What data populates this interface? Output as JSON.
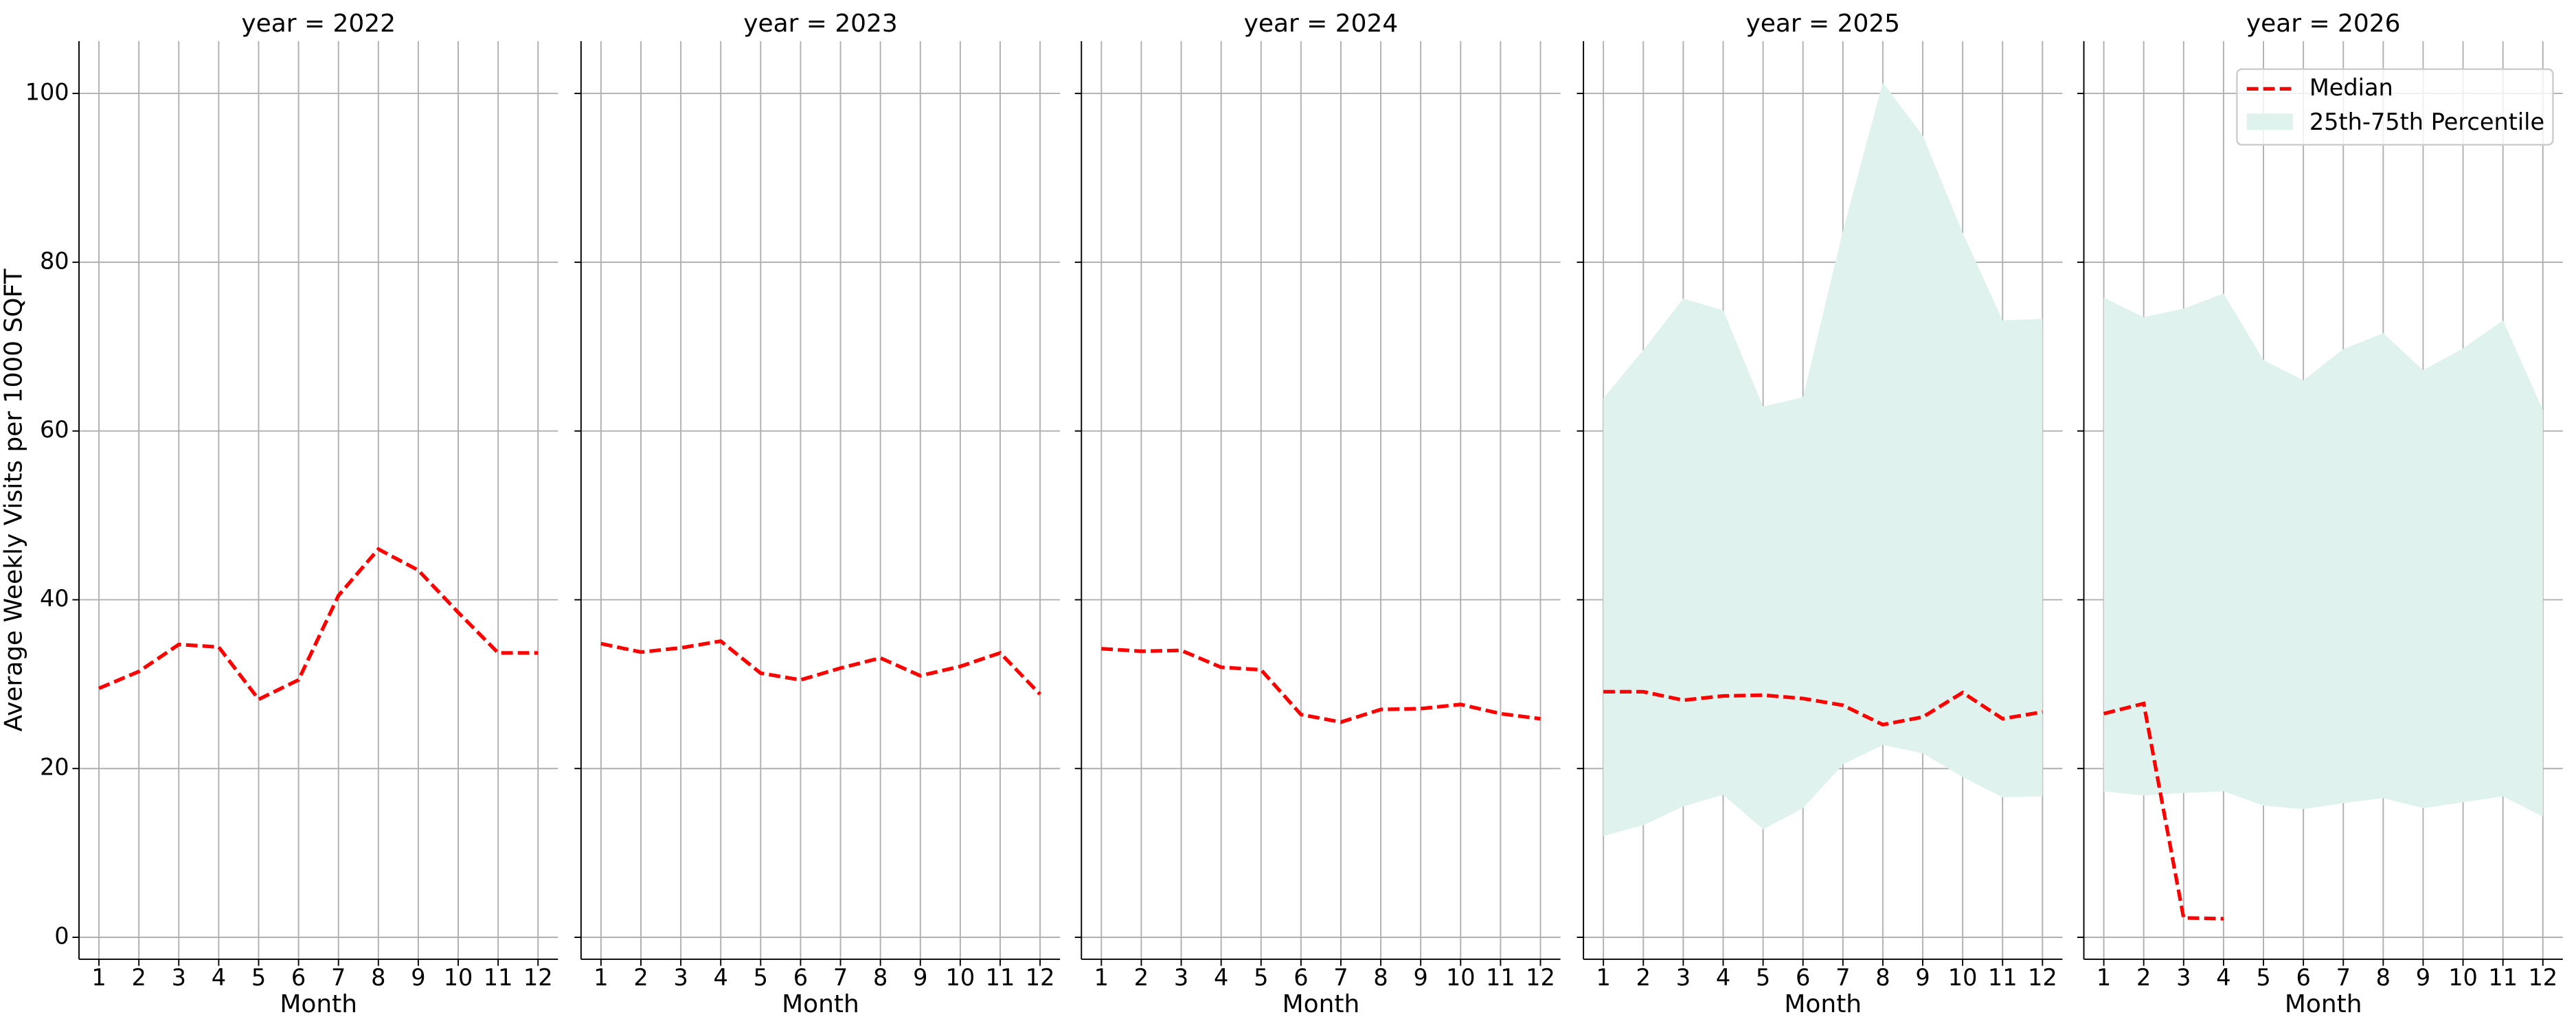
{
  "chart_data": [
    {
      "type": "line",
      "title": "year = 2022",
      "xlabel": "Month",
      "ylabel": "Average Weekly Visits per 1000 SQFT",
      "x": [
        1,
        2,
        3,
        4,
        5,
        6,
        7,
        8,
        9,
        10,
        11,
        12
      ],
      "xlim": [
        0.5,
        12.5
      ],
      "ylim": [
        -2.6,
        106.2
      ],
      "yticks": [
        0,
        20,
        40,
        60,
        80,
        100
      ],
      "grid": true,
      "series": [
        {
          "color": "#ff0000",
          "values": [
            29.5,
            31.5,
            34.7,
            34.4,
            28.2,
            30.5,
            40.5,
            46.0,
            43.5,
            38.5,
            33.7,
            33.7
          ]
        }
      ]
    },
    {
      "type": "line",
      "title": "year = 2023",
      "xlabel": "Month",
      "x": [
        1,
        2,
        3,
        4,
        5,
        6,
        7,
        8,
        9,
        10,
        11,
        12
      ],
      "xlim": [
        0.5,
        12.5
      ],
      "ylim": [
        -2.6,
        106.2
      ],
      "grid": true,
      "series": [
        {
          "color": "#ff0000",
          "values": [
            34.8,
            33.8,
            34.3,
            35.1,
            31.3,
            30.5,
            31.9,
            33.1,
            31.0,
            32.1,
            33.7,
            28.8
          ]
        }
      ]
    },
    {
      "type": "line",
      "title": "year = 2024",
      "xlabel": "Month",
      "x": [
        1,
        2,
        3,
        4,
        5,
        6,
        7,
        8,
        9,
        10,
        11,
        12
      ],
      "xlim": [
        0.5,
        12.5
      ],
      "ylim": [
        -2.6,
        106.2
      ],
      "grid": true,
      "series": [
        {
          "color": "#ff0000",
          "values": [
            34.2,
            33.9,
            34.0,
            32.0,
            31.7,
            26.4,
            25.5,
            27.0,
            27.1,
            27.6,
            26.5,
            25.9
          ]
        }
      ]
    },
    {
      "type": "line",
      "title": "year = 2025",
      "xlabel": "Month",
      "x": [
        1,
        2,
        3,
        4,
        5,
        6,
        7,
        8,
        9,
        10,
        11,
        12
      ],
      "xlim": [
        0.5,
        12.5
      ],
      "ylim": [
        -2.6,
        106.2
      ],
      "grid": true,
      "series": [
        {
          "color": "#ff0000",
          "values": [
            29.1,
            29.1,
            28.1,
            28.6,
            28.7,
            28.3,
            27.5,
            25.2,
            26.1,
            29.0,
            25.9,
            26.7
          ]
        }
      ],
      "band": {
        "color": "#dff2ed",
        "upper": [
          63.9,
          69.6,
          75.7,
          74.3,
          62.9,
          64.0,
          83.7,
          101.3,
          95.0,
          83.5,
          73.1,
          73.3
        ],
        "lower": [
          12.0,
          13.3,
          15.5,
          16.9,
          12.8,
          15.3,
          20.5,
          22.8,
          21.8,
          19.0,
          16.6,
          16.7
        ]
      }
    },
    {
      "type": "line",
      "title": "year = 2026",
      "xlabel": "Month",
      "legend": "upper right",
      "x": [
        1,
        2,
        3,
        4,
        5,
        6,
        7,
        8,
        9,
        10,
        11,
        12
      ],
      "xlim": [
        0.5,
        12.5
      ],
      "ylim": [
        -2.6,
        106.2
      ],
      "grid": true,
      "series": [
        {
          "name": "Median",
          "color": "#ff0000",
          "values": [
            26.5,
            27.7,
            2.3,
            2.2,
            null,
            null,
            null,
            null,
            null,
            null,
            null,
            null
          ]
        }
      ],
      "band": {
        "name": "25th-75th Percentile",
        "color": "#dff2ed",
        "upper": [
          75.8,
          73.5,
          74.5,
          76.3,
          68.4,
          66.0,
          69.7,
          71.6,
          67.2,
          69.8,
          73.1,
          62.5
        ],
        "lower": [
          17.3,
          16.8,
          17.1,
          17.3,
          15.6,
          15.2,
          15.9,
          16.5,
          15.3,
          16.0,
          16.7,
          14.3
        ]
      }
    }
  ]
}
